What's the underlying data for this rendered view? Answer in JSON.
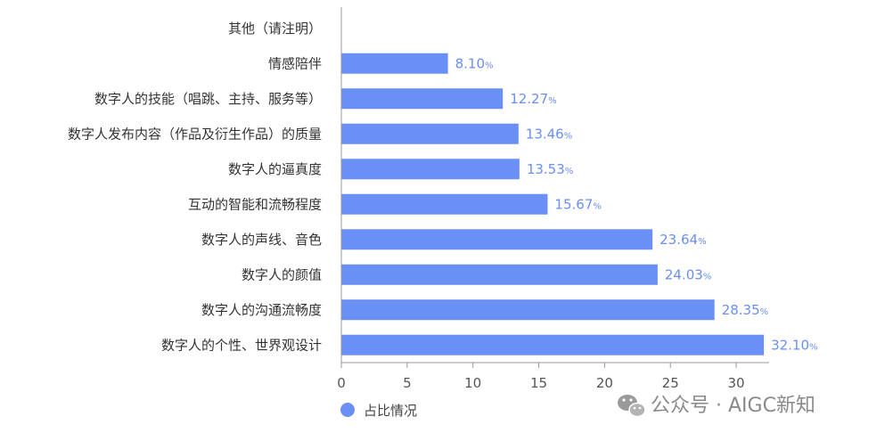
{
  "chart_data": {
    "type": "bar",
    "orientation": "horizontal",
    "categories": [
      "其他（请注明）",
      "情感陪伴",
      "数字人的技能（唱跳、主持、服务等）",
      "数字人发布内容（作品及衍生作品）的质量",
      "数字人的逼真度",
      "互动的智能和流畅程度",
      "数字人的声线、音色",
      "数字人的颜值",
      "数字人的沟通流畅度",
      "数字人的个性、世界观设计"
    ],
    "series": [
      {
        "name": "占比情况",
        "values": [
          0,
          8.1,
          12.27,
          13.46,
          13.53,
          15.67,
          23.64,
          24.03,
          28.35,
          32.1
        ],
        "value_labels": [
          "",
          "8.10%",
          "12.27%",
          "13.46%",
          "13.53%",
          "15.67%",
          "23.64%",
          "24.03%",
          "28.35%",
          "32.10%"
        ]
      }
    ],
    "xlim": [
      0,
      32.5
    ],
    "xticks": [
      0,
      5,
      10,
      15,
      20,
      25,
      30
    ],
    "grid": false,
    "legend": "bottom-left",
    "colors": {
      "bar": "#6a8ff5",
      "value_text": "#6a8ff5"
    }
  },
  "watermark": {
    "text": "公众号 · AIGC新知",
    "icon": "wechat-icon"
  }
}
